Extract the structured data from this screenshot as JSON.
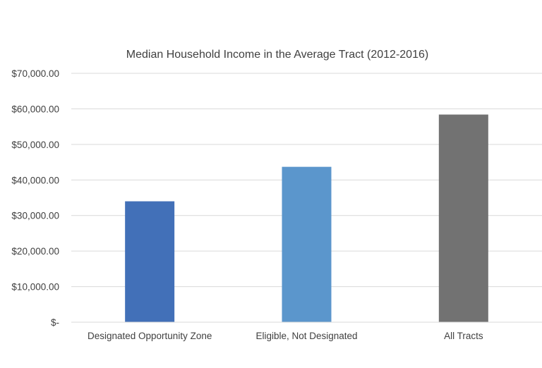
{
  "chart_data": {
    "type": "bar",
    "title": "Median Household Income in the Average Tract (2012-2016)",
    "xlabel": "",
    "ylabel": "",
    "categories": [
      "Designated Opportunity Zone",
      "Eligible, Not Designated",
      "All Tracts"
    ],
    "values": [
      34000,
      43700,
      58400
    ],
    "bar_colors": [
      "#4270b8",
      "#5b96cc",
      "#727272"
    ],
    "ylim": [
      0,
      70000
    ],
    "y_ticks": [
      0,
      10000,
      20000,
      30000,
      40000,
      50000,
      60000,
      70000
    ],
    "y_tick_labels": [
      "$-",
      "$10,000.00",
      "$20,000.00",
      "$30,000.00",
      "$40,000.00",
      "$50,000.00",
      "$60,000.00",
      "$70,000.00"
    ],
    "grid": true,
    "legend": "none"
  }
}
